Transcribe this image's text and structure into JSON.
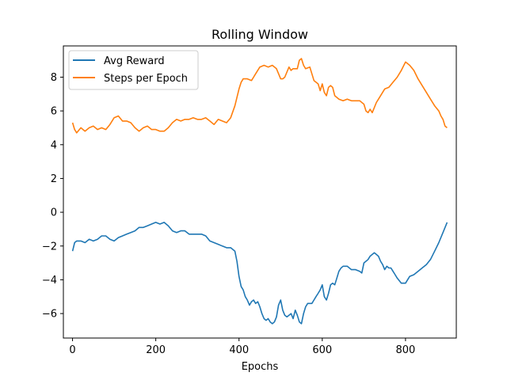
{
  "chart_data": {
    "type": "line",
    "title": "Rolling Window",
    "xlabel": "Epochs",
    "ylabel": "",
    "xlim": [
      -22,
      922
    ],
    "ylim": [
      -7.45,
      9.85
    ],
    "xticks": [
      0,
      200,
      400,
      600,
      800
    ],
    "yticks": [
      -6,
      -4,
      -2,
      0,
      2,
      4,
      6,
      8
    ],
    "grid": false,
    "legend": {
      "placement": "top-left"
    },
    "series": [
      {
        "name": "Avg Reward",
        "color": "#1f77b4",
        "points": [
          [
            0,
            -2.3
          ],
          [
            5,
            -1.8
          ],
          [
            10,
            -1.7
          ],
          [
            20,
            -1.7
          ],
          [
            30,
            -1.8
          ],
          [
            40,
            -1.6
          ],
          [
            50,
            -1.7
          ],
          [
            60,
            -1.6
          ],
          [
            70,
            -1.4
          ],
          [
            80,
            -1.4
          ],
          [
            90,
            -1.6
          ],
          [
            100,
            -1.7
          ],
          [
            110,
            -1.5
          ],
          [
            120,
            -1.4
          ],
          [
            130,
            -1.3
          ],
          [
            140,
            -1.2
          ],
          [
            150,
            -1.1
          ],
          [
            160,
            -0.9
          ],
          [
            170,
            -0.9
          ],
          [
            180,
            -0.8
          ],
          [
            190,
            -0.7
          ],
          [
            200,
            -0.6
          ],
          [
            210,
            -0.7
          ],
          [
            220,
            -0.6
          ],
          [
            230,
            -0.8
          ],
          [
            240,
            -1.1
          ],
          [
            250,
            -1.2
          ],
          [
            260,
            -1.1
          ],
          [
            270,
            -1.1
          ],
          [
            280,
            -1.3
          ],
          [
            290,
            -1.3
          ],
          [
            300,
            -1.3
          ],
          [
            310,
            -1.3
          ],
          [
            320,
            -1.4
          ],
          [
            330,
            -1.7
          ],
          [
            340,
            -1.8
          ],
          [
            350,
            -1.9
          ],
          [
            360,
            -2.0
          ],
          [
            370,
            -2.1
          ],
          [
            380,
            -2.1
          ],
          [
            390,
            -2.3
          ],
          [
            395,
            -2.9
          ],
          [
            400,
            -3.8
          ],
          [
            405,
            -4.4
          ],
          [
            410,
            -4.6
          ],
          [
            415,
            -5.0
          ],
          [
            420,
            -5.2
          ],
          [
            425,
            -5.5
          ],
          [
            430,
            -5.3
          ],
          [
            435,
            -5.2
          ],
          [
            440,
            -5.4
          ],
          [
            445,
            -5.3
          ],
          [
            450,
            -5.6
          ],
          [
            455,
            -6.0
          ],
          [
            460,
            -6.3
          ],
          [
            465,
            -6.4
          ],
          [
            470,
            -6.3
          ],
          [
            475,
            -6.5
          ],
          [
            480,
            -6.6
          ],
          [
            485,
            -6.5
          ],
          [
            490,
            -6.2
          ],
          [
            495,
            -5.5
          ],
          [
            500,
            -5.2
          ],
          [
            505,
            -5.8
          ],
          [
            510,
            -6.1
          ],
          [
            515,
            -6.2
          ],
          [
            520,
            -6.1
          ],
          [
            525,
            -6.0
          ],
          [
            530,
            -6.3
          ],
          [
            535,
            -5.8
          ],
          [
            540,
            -6.1
          ],
          [
            545,
            -6.5
          ],
          [
            550,
            -6.6
          ],
          [
            555,
            -6.0
          ],
          [
            560,
            -5.6
          ],
          [
            565,
            -5.4
          ],
          [
            570,
            -5.4
          ],
          [
            575,
            -5.4
          ],
          [
            580,
            -5.2
          ],
          [
            585,
            -5.0
          ],
          [
            590,
            -4.8
          ],
          [
            595,
            -4.6
          ],
          [
            600,
            -4.3
          ],
          [
            605,
            -5.0
          ],
          [
            610,
            -5.2
          ],
          [
            615,
            -4.8
          ],
          [
            620,
            -4.3
          ],
          [
            625,
            -4.2
          ],
          [
            630,
            -4.3
          ],
          [
            635,
            -3.9
          ],
          [
            640,
            -3.5
          ],
          [
            645,
            -3.3
          ],
          [
            650,
            -3.2
          ],
          [
            660,
            -3.2
          ],
          [
            670,
            -3.4
          ],
          [
            680,
            -3.4
          ],
          [
            690,
            -3.5
          ],
          [
            695,
            -3.6
          ],
          [
            700,
            -3.0
          ],
          [
            705,
            -2.9
          ],
          [
            710,
            -2.8
          ],
          [
            715,
            -2.6
          ],
          [
            720,
            -2.5
          ],
          [
            725,
            -2.4
          ],
          [
            730,
            -2.5
          ],
          [
            735,
            -2.6
          ],
          [
            740,
            -2.9
          ],
          [
            745,
            -3.1
          ],
          [
            750,
            -3.4
          ],
          [
            755,
            -3.2
          ],
          [
            760,
            -3.3
          ],
          [
            765,
            -3.3
          ],
          [
            770,
            -3.5
          ],
          [
            775,
            -3.7
          ],
          [
            780,
            -3.9
          ],
          [
            790,
            -4.2
          ],
          [
            800,
            -4.2
          ],
          [
            805,
            -4.0
          ],
          [
            810,
            -3.8
          ],
          [
            820,
            -3.7
          ],
          [
            830,
            -3.5
          ],
          [
            840,
            -3.3
          ],
          [
            850,
            -3.1
          ],
          [
            860,
            -2.8
          ],
          [
            870,
            -2.3
          ],
          [
            880,
            -1.8
          ],
          [
            890,
            -1.2
          ],
          [
            895,
            -0.9
          ],
          [
            900,
            -0.6
          ]
        ]
      },
      {
        "name": "Steps per Epoch",
        "color": "#ff7f0e",
        "points": [
          [
            0,
            5.3
          ],
          [
            5,
            4.9
          ],
          [
            10,
            4.7
          ],
          [
            20,
            5.0
          ],
          [
            30,
            4.8
          ],
          [
            40,
            5.0
          ],
          [
            50,
            5.1
          ],
          [
            60,
            4.9
          ],
          [
            70,
            5.0
          ],
          [
            80,
            4.9
          ],
          [
            90,
            5.2
          ],
          [
            100,
            5.6
          ],
          [
            110,
            5.7
          ],
          [
            120,
            5.4
          ],
          [
            130,
            5.4
          ],
          [
            140,
            5.3
          ],
          [
            150,
            5.0
          ],
          [
            160,
            4.8
          ],
          [
            170,
            5.0
          ],
          [
            180,
            5.1
          ],
          [
            190,
            4.9
          ],
          [
            200,
            4.9
          ],
          [
            210,
            4.8
          ],
          [
            220,
            4.8
          ],
          [
            230,
            5.0
          ],
          [
            240,
            5.3
          ],
          [
            250,
            5.5
          ],
          [
            260,
            5.4
          ],
          [
            270,
            5.5
          ],
          [
            280,
            5.5
          ],
          [
            290,
            5.6
          ],
          [
            300,
            5.5
          ],
          [
            310,
            5.5
          ],
          [
            320,
            5.6
          ],
          [
            330,
            5.4
          ],
          [
            340,
            5.2
          ],
          [
            350,
            5.5
          ],
          [
            360,
            5.4
          ],
          [
            370,
            5.3
          ],
          [
            380,
            5.6
          ],
          [
            390,
            6.3
          ],
          [
            395,
            6.8
          ],
          [
            400,
            7.3
          ],
          [
            405,
            7.7
          ],
          [
            410,
            7.9
          ],
          [
            420,
            7.9
          ],
          [
            430,
            7.8
          ],
          [
            435,
            8.0
          ],
          [
            440,
            8.2
          ],
          [
            450,
            8.6
          ],
          [
            460,
            8.7
          ],
          [
            470,
            8.6
          ],
          [
            480,
            8.7
          ],
          [
            490,
            8.5
          ],
          [
            500,
            7.9
          ],
          [
            505,
            7.9
          ],
          [
            510,
            8.0
          ],
          [
            520,
            8.6
          ],
          [
            525,
            8.4
          ],
          [
            530,
            8.5
          ],
          [
            540,
            8.5
          ],
          [
            545,
            9.0
          ],
          [
            550,
            9.1
          ],
          [
            555,
            8.7
          ],
          [
            560,
            8.5
          ],
          [
            570,
            8.6
          ],
          [
            580,
            7.8
          ],
          [
            590,
            7.6
          ],
          [
            595,
            7.2
          ],
          [
            600,
            7.6
          ],
          [
            605,
            7.1
          ],
          [
            610,
            6.9
          ],
          [
            615,
            7.4
          ],
          [
            620,
            7.5
          ],
          [
            625,
            7.4
          ],
          [
            630,
            6.9
          ],
          [
            640,
            6.7
          ],
          [
            650,
            6.6
          ],
          [
            660,
            6.7
          ],
          [
            670,
            6.6
          ],
          [
            680,
            6.6
          ],
          [
            690,
            6.6
          ],
          [
            700,
            6.4
          ],
          [
            705,
            6.0
          ],
          [
            710,
            5.9
          ],
          [
            715,
            6.1
          ],
          [
            720,
            5.9
          ],
          [
            730,
            6.5
          ],
          [
            740,
            6.9
          ],
          [
            750,
            7.3
          ],
          [
            760,
            7.4
          ],
          [
            770,
            7.7
          ],
          [
            780,
            8.0
          ],
          [
            790,
            8.4
          ],
          [
            800,
            8.9
          ],
          [
            810,
            8.7
          ],
          [
            820,
            8.4
          ],
          [
            830,
            7.9
          ],
          [
            840,
            7.5
          ],
          [
            850,
            7.1
          ],
          [
            860,
            6.7
          ],
          [
            870,
            6.3
          ],
          [
            880,
            6.0
          ],
          [
            885,
            5.7
          ],
          [
            890,
            5.5
          ],
          [
            895,
            5.1
          ],
          [
            900,
            5.0
          ]
        ]
      }
    ]
  }
}
